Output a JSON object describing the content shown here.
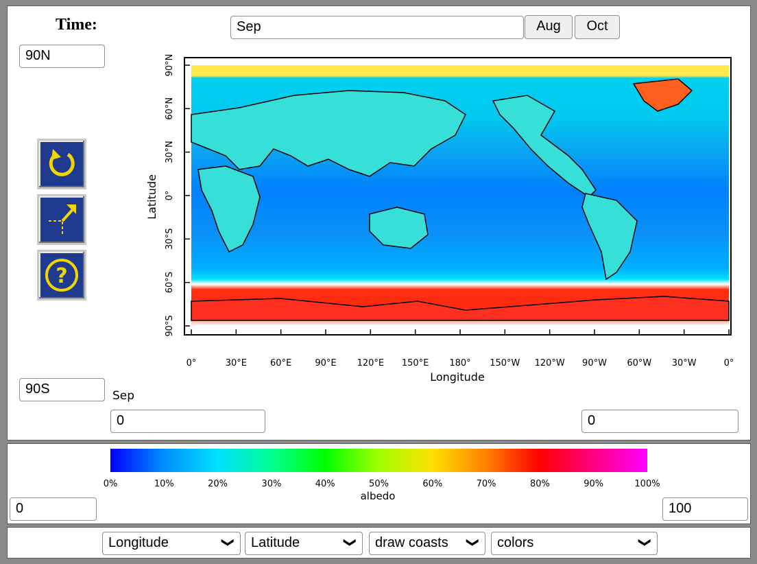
{
  "time": {
    "label": "Time:",
    "value": "Sep",
    "prev_label": "Aug",
    "next_label": "Oct"
  },
  "map": {
    "lat_max": "90N",
    "lat_min": "90S",
    "caption": "Sep",
    "lon_min": "0",
    "lon_max": "0",
    "xlabel": "Longitude",
    "ylabel": "Latitude",
    "xticks": [
      "0°",
      "30°E",
      "60°E",
      "90°E",
      "120°E",
      "150°E",
      "180°",
      "150°W",
      "120°W",
      "90°W",
      "60°W",
      "30°W",
      "0°"
    ],
    "yticks": [
      "90°N",
      "60°N",
      "30°N",
      "0°",
      "30°S",
      "60°S",
      "90°S"
    ]
  },
  "tools": {
    "refresh_icon": "refresh-icon",
    "expand_icon": "expand-icon",
    "help_icon": "help-icon"
  },
  "colorbar": {
    "label": "albedo",
    "ticks": [
      "0%",
      "10%",
      "20%",
      "30%",
      "40%",
      "50%",
      "60%",
      "70%",
      "80%",
      "90%",
      "100%"
    ],
    "min_value": "0",
    "max_value": "100",
    "colors": [
      "#0000ff",
      "#0090ff",
      "#00e0ff",
      "#00ff90",
      "#00ff00",
      "#a0ff00",
      "#ffe000",
      "#ff8000",
      "#ff0000",
      "#ff0080",
      "#ff00ff"
    ]
  },
  "selectors": {
    "x_axis": "Longitude",
    "y_axis": "Latitude",
    "overlay": "draw coasts",
    "style": "colors"
  }
}
